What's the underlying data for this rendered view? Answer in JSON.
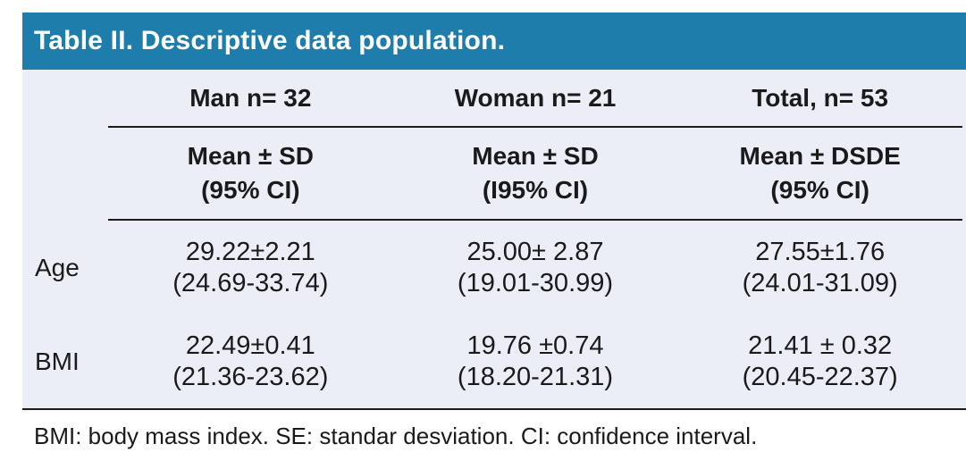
{
  "title": "Table II. Descriptive data population.",
  "colors": {
    "header_bg": "#1e7dab",
    "body_bg": "#ebeef6",
    "rule_line": "#1b1b1b",
    "title_text": "#ffffff"
  },
  "table": {
    "column_headers": [
      "Man n= 32",
      "Woman n= 21",
      "Total, n= 53"
    ],
    "subheaders": [
      {
        "line1": "Mean ± SD",
        "line2": "(95% CI)"
      },
      {
        "line1": "Mean ± SD",
        "line2": "(I95% CI)"
      },
      {
        "line1": "Mean ± DSDE",
        "line2": "(95% CI)"
      }
    ],
    "rows": [
      {
        "label": "Age",
        "cells": [
          {
            "line1": "29.22±2.21",
            "line2": "(24.69-33.74)"
          },
          {
            "line1": "25.00± 2.87",
            "line2": "(19.01-30.99)"
          },
          {
            "line1": "27.55±1.76",
            "line2": "(24.01-31.09)"
          }
        ]
      },
      {
        "label": "BMI",
        "cells": [
          {
            "line1": "22.49±0.41",
            "line2": "(21.36-23.62)"
          },
          {
            "line1": "19.76 ±0.74",
            "line2": "(18.20-21.31)"
          },
          {
            "line1": "21.41 ± 0.32",
            "line2": "(20.45-22.37)"
          }
        ]
      }
    ]
  },
  "footnote": "BMI: body mass index. SE: standar desviation. CI: confidence interval."
}
